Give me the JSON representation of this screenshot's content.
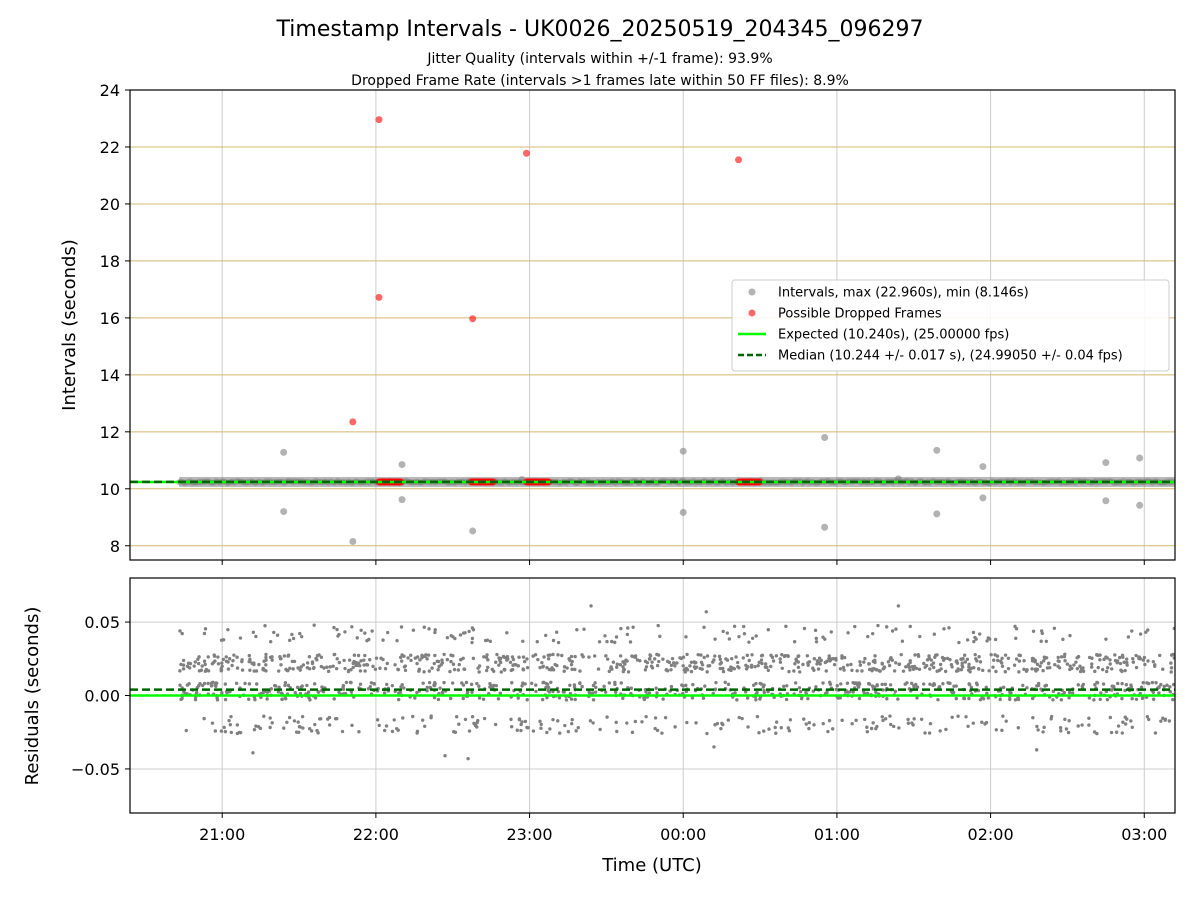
{
  "figure": {
    "title": "Timestamp Intervals - UK0026_20250519_204345_096297",
    "subtitle_1": "Jitter Quality (intervals within +/-1 frame): 93.9%",
    "subtitle_2": "Dropped Frame Rate (intervals >1 frames late within 50 FF files): 8.9%",
    "xlabel": "Time (UTC)",
    "colors": {
      "intervals": "#808080",
      "dropped": "#ff0000",
      "expected": "#00ff00",
      "median": "#006400",
      "reference_grid": "#d4b86a",
      "grid": "#cccccc"
    }
  },
  "chart_data": [
    {
      "type": "scatter",
      "panel": "intervals",
      "ylabel": "Intervals (seconds)",
      "ylim": [
        7.5,
        24
      ],
      "xlim_hours": [
        20.4,
        27.2
      ],
      "x_tick_hours": [
        21,
        22,
        23,
        24,
        25,
        26,
        27
      ],
      "x_tick_labels": [
        "21:00",
        "22:00",
        "23:00",
        "00:00",
        "01:00",
        "02:00",
        "03:00"
      ],
      "y_ticks": [
        8,
        10,
        12,
        14,
        16,
        18,
        20,
        22,
        24
      ],
      "y_tick_labels": [
        "8",
        "10",
        "12",
        "14",
        "16",
        "18",
        "20",
        "22",
        "24"
      ],
      "grid": true,
      "legend_position": "right",
      "legend": [
        "Intervals, max (22.960s), min (8.146s)",
        "Possible Dropped Frames",
        "Expected (10.240s), (25.00000 fps)",
        "Median (10.244 +/- 0.017 s), (24.99050 +/- 0.04 fps)"
      ],
      "expected_value": 10.24,
      "median_value": 10.244,
      "series": [
        {
          "name": "Intervals, max (22.960s), min (8.146s)",
          "points": [
            [
              21.4,
              11.28
            ],
            [
              21.4,
              9.2
            ],
            [
              21.85,
              8.15
            ],
            [
              22.17,
              10.85
            ],
            [
              22.17,
              9.62
            ],
            [
              22.63,
              8.52
            ],
            [
              22.95,
              10.32
            ],
            [
              24.0,
              11.32
            ],
            [
              24.0,
              9.17
            ],
            [
              24.92,
              11.8
            ],
            [
              24.92,
              8.65
            ],
            [
              25.4,
              10.35
            ],
            [
              25.65,
              11.35
            ],
            [
              25.65,
              9.12
            ],
            [
              25.95,
              10.78
            ],
            [
              25.95,
              9.68
            ],
            [
              26.75,
              10.92
            ],
            [
              26.75,
              9.58
            ],
            [
              26.97,
              11.08
            ],
            [
              26.97,
              9.42
            ]
          ],
          "band_start_hour": 20.72,
          "band_end_hour": 27.2,
          "band_value": 10.24
        },
        {
          "name": "Possible Dropped Frames",
          "points": [
            [
              22.02,
              22.96
            ],
            [
              22.02,
              16.72
            ],
            [
              21.85,
              12.35
            ],
            [
              22.63,
              15.97
            ],
            [
              22.98,
              21.78
            ],
            [
              24.36,
              21.55
            ]
          ],
          "clusters": [
            {
              "start_hour": 22.02,
              "end_hour": 22.17,
              "value": 10.24
            },
            {
              "start_hour": 22.62,
              "end_hour": 22.77,
              "value": 10.24
            },
            {
              "start_hour": 22.98,
              "end_hour": 23.13,
              "value": 10.24
            },
            {
              "start_hour": 24.36,
              "end_hour": 24.5,
              "value": 10.24
            }
          ]
        }
      ]
    },
    {
      "type": "scatter",
      "panel": "residuals",
      "ylabel": "Residuals (seconds)",
      "ylim": [
        -0.08,
        0.08
      ],
      "y_ticks": [
        0.05,
        0.0,
        -0.05
      ],
      "y_tick_labels": [
        "0.05",
        "0.00",
        "−0.05"
      ],
      "grid": true,
      "expected_value": 0.0,
      "median_value": 0.004,
      "series": [
        {
          "name": "Residuals",
          "x_range_hours": [
            20.72,
            27.2
          ],
          "levels": [
            0.022,
            0.003,
            -0.02,
            0.042
          ],
          "spread": 0.006,
          "count": 1700,
          "extremes": [
            [
              23.4,
              0.061
            ],
            [
              25.4,
              0.061
            ],
            [
              24.15,
              0.057
            ],
            [
              21.2,
              -0.039
            ],
            [
              22.45,
              -0.041
            ],
            [
              22.6,
              -0.043
            ],
            [
              24.2,
              -0.035
            ],
            [
              26.3,
              -0.037
            ]
          ]
        }
      ]
    }
  ]
}
